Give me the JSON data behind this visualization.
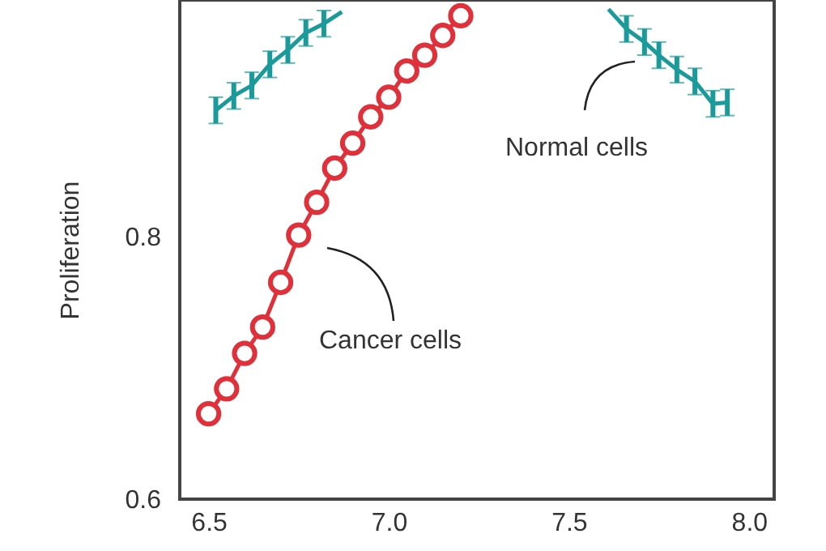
{
  "chart_data": {
    "type": "line",
    "ylabel": "Proliferation",
    "xlim": [
      6.42,
      8.07
    ],
    "xticks": [
      {
        "value": 6.5,
        "label": "6.5"
      },
      {
        "value": 7,
        "label": "7.0"
      },
      {
        "value": 7.5,
        "label": "7.5"
      },
      {
        "value": 8,
        "label": "8.0"
      }
    ],
    "ylim": [
      0.6,
      0.98
    ],
    "yticks": [
      {
        "value": 0.6,
        "label": "0.6"
      },
      {
        "value": 0.8,
        "label": "0.8"
      }
    ],
    "line_style": "solid",
    "annotations": [
      "Normal cells",
      "Cancer cells"
    ],
    "series": [
      {
        "color": "#e0303a",
        "marker": "circle",
        "x": [
          6.5,
          6.55,
          6.6,
          6.65,
          6.7,
          6.75,
          6.8,
          6.85,
          6.9,
          6.95,
          7.0,
          7.05,
          7.1,
          7.15,
          7.2
        ],
        "values": [
          0.665,
          0.684,
          0.711,
          0.731,
          0.765,
          0.801,
          0.826,
          0.852,
          0.871,
          0.891,
          0.906,
          0.926,
          0.938,
          0.953,
          0.968
        ]
      },
      {
        "color": "#1a9a9a",
        "marker": "none",
        "x": [
          6.52,
          6.57,
          6.62,
          6.67,
          6.72,
          6.77,
          6.82,
          6.87
        ],
        "values": [
          0.896,
          0.907,
          0.915,
          0.931,
          0.942,
          0.955,
          0.962,
          0.971
        ],
        "errors": [
          0.01,
          0.01,
          0.01,
          0.01,
          0.01,
          0.01,
          0.01,
          null
        ]
      },
      {
        "color": "#1a9a9a",
        "marker": "none",
        "x": [
          7.61,
          7.66,
          7.71,
          7.75,
          7.8,
          7.85,
          7.9,
          7.94
        ],
        "values": [
          0.973,
          0.958,
          0.948,
          0.938,
          0.927,
          0.918,
          0.901,
          0.902
        ],
        "errors": [
          null,
          0.01,
          0.01,
          0.01,
          0.01,
          0.01,
          0.01,
          0.01
        ]
      }
    ]
  }
}
